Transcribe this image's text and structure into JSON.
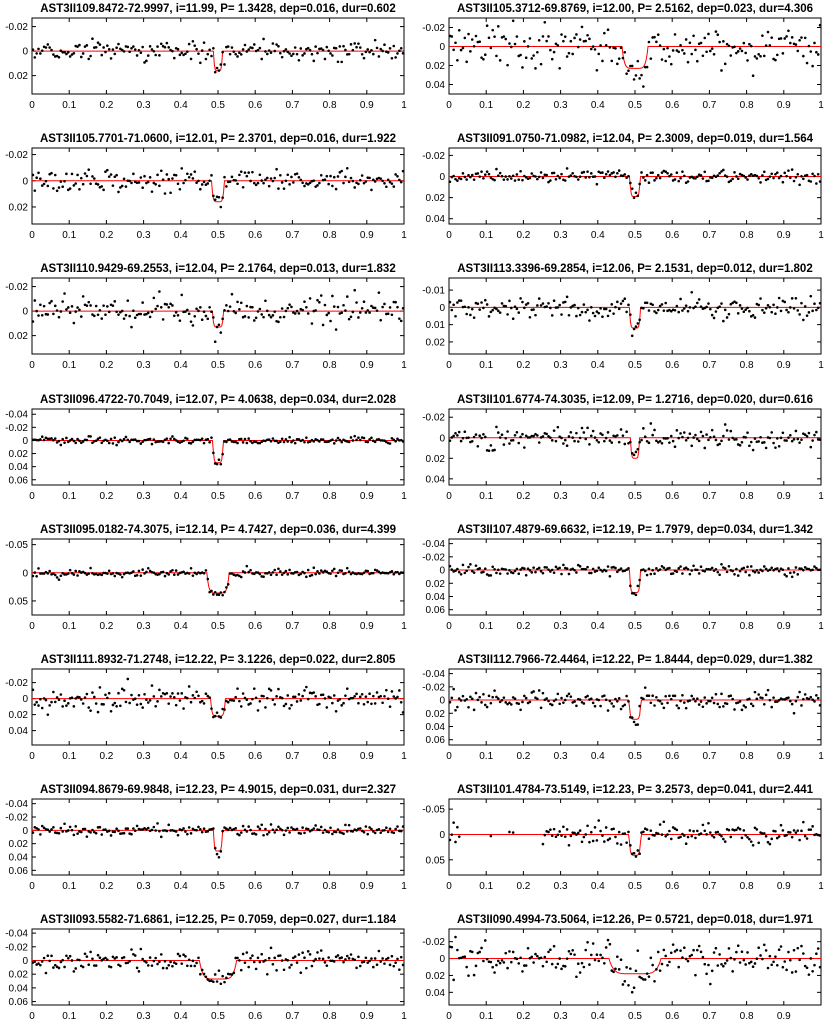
{
  "chart_data": [
    {
      "type": "scatter",
      "title": "AST3II109.8472-72.9997, i=11.99, P= 1.3428, dep=0.016, dur=0.602",
      "xlim": [
        0,
        1
      ],
      "ylim": [
        0.035,
        -0.027
      ],
      "yticks": [
        -0.02,
        0,
        0.02
      ],
      "ytick_labels": [
        "-0.02",
        "0",
        "0.02"
      ],
      "xticks": [
        0,
        0.1,
        0.2,
        0.3,
        0.4,
        0.5,
        0.6,
        0.7,
        0.8,
        0.9,
        1
      ],
      "xtick_labels": [
        "0",
        "0.1",
        "0.2",
        "0.3",
        "0.4",
        "0.5",
        "0.6",
        "0.7",
        "0.8",
        "0.9",
        "1"
      ],
      "depth": 0.016,
      "transit_center": 0.5,
      "transit_halfwidth": 0.012,
      "noise": 0.004,
      "seed": 11
    },
    {
      "type": "scatter",
      "title": "AST3II105.3712-69.8769, i=12.00, P= 2.5162, dep=0.023, dur=4.306",
      "xlim": [
        0,
        1
      ],
      "ylim": [
        0.05,
        -0.03
      ],
      "yticks": [
        -0.02,
        0,
        0.02,
        0.04
      ],
      "ytick_labels": [
        "-0.02",
        "0",
        "0.02",
        "0.04"
      ],
      "xticks": [
        0,
        0.1,
        0.2,
        0.3,
        0.4,
        0.5,
        0.6,
        0.7,
        0.8,
        0.9,
        1
      ],
      "xtick_labels": [
        "0",
        "0.1",
        "0.2",
        "0.3",
        "0.4",
        "0.5",
        "0.6",
        "0.7",
        "0.8",
        "0.9",
        "1"
      ],
      "depth": 0.023,
      "transit_center": 0.5,
      "transit_halfwidth": 0.035,
      "noise": 0.01,
      "seed": 23
    },
    {
      "type": "scatter",
      "title": "AST3II105.7701-71.0600, i=12.01, P= 2.3701, dep=0.016, dur=1.922",
      "xlim": [
        0,
        1
      ],
      "ylim": [
        0.033,
        -0.025
      ],
      "yticks": [
        -0.02,
        0,
        0.02
      ],
      "ytick_labels": [
        "-0.02",
        "0",
        "0.02"
      ],
      "xticks": [
        0,
        0.1,
        0.2,
        0.3,
        0.4,
        0.5,
        0.6,
        0.7,
        0.8,
        0.9,
        1
      ],
      "xtick_labels": [
        "0",
        "0.1",
        "0.2",
        "0.3",
        "0.4",
        "0.5",
        "0.6",
        "0.7",
        "0.8",
        "0.9",
        "1"
      ],
      "depth": 0.016,
      "transit_center": 0.5,
      "transit_halfwidth": 0.017,
      "noise": 0.004,
      "seed": 37
    },
    {
      "type": "scatter",
      "title": "AST3II091.0750-71.0982, i=12.04, P= 2.3009, dep=0.019, dur=1.564",
      "xlim": [
        0,
        1
      ],
      "ylim": [
        0.045,
        -0.027
      ],
      "yticks": [
        -0.02,
        0,
        0.02,
        0.04
      ],
      "ytick_labels": [
        "-0.02",
        "0",
        "0.02",
        "0.04"
      ],
      "xticks": [
        0,
        0.1,
        0.2,
        0.3,
        0.4,
        0.5,
        0.6,
        0.7,
        0.8,
        0.9,
        1
      ],
      "xtick_labels": [
        "0",
        "0.1",
        "0.2",
        "0.3",
        "0.4",
        "0.5",
        "0.6",
        "0.7",
        "0.8",
        "0.9",
        "1"
      ],
      "depth": 0.019,
      "transit_center": 0.5,
      "transit_halfwidth": 0.014,
      "noise": 0.003,
      "seed": 41
    },
    {
      "type": "scatter",
      "title": "AST3II110.9429-69.2553, i=12.04, P= 2.1764, dep=0.013, dur=1.832",
      "xlim": [
        0,
        1
      ],
      "ylim": [
        0.035,
        -0.027
      ],
      "yticks": [
        -0.02,
        0,
        0.02
      ],
      "ytick_labels": [
        "-0.02",
        "0",
        "0.02"
      ],
      "xticks": [
        0,
        0.1,
        0.2,
        0.3,
        0.4,
        0.5,
        0.6,
        0.7,
        0.8,
        0.9,
        1
      ],
      "xtick_labels": [
        "0",
        "0.1",
        "0.2",
        "0.3",
        "0.4",
        "0.5",
        "0.6",
        "0.7",
        "0.8",
        "0.9",
        "1"
      ],
      "depth": 0.013,
      "transit_center": 0.5,
      "transit_halfwidth": 0.015,
      "noise": 0.006,
      "seed": 53
    },
    {
      "type": "scatter",
      "title": "AST3II113.3396-69.2854, i=12.06, P= 2.1531, dep=0.012, dur=1.802",
      "xlim": [
        0,
        1
      ],
      "ylim": [
        0.027,
        -0.017
      ],
      "yticks": [
        -0.01,
        0,
        0.01,
        0.02
      ],
      "ytick_labels": [
        "-0.01",
        "0",
        "0.01",
        "0.02"
      ],
      "xticks": [
        0,
        0.1,
        0.2,
        0.3,
        0.4,
        0.5,
        0.6,
        0.7,
        0.8,
        0.9,
        1
      ],
      "xtick_labels": [
        "0",
        "0.1",
        "0.2",
        "0.3",
        "0.4",
        "0.5",
        "0.6",
        "0.7",
        "0.8",
        "0.9",
        "1"
      ],
      "depth": 0.012,
      "transit_center": 0.5,
      "transit_halfwidth": 0.015,
      "noise": 0.003,
      "seed": 67
    },
    {
      "type": "scatter",
      "title": "AST3II096.4722-70.7049, i=12.07, P= 4.0638, dep=0.034, dur=2.028",
      "xlim": [
        0,
        1
      ],
      "ylim": [
        0.068,
        -0.048
      ],
      "yticks": [
        -0.04,
        -0.02,
        0,
        0.02,
        0.04,
        0.06
      ],
      "ytick_labels": [
        "-0.04",
        "-0.02",
        "0",
        "0.02",
        "0.04",
        "0.06"
      ],
      "xticks": [
        0,
        0.1,
        0.2,
        0.3,
        0.4,
        0.5,
        0.6,
        0.7,
        0.8,
        0.9,
        1
      ],
      "xtick_labels": [
        "0",
        "0.1",
        "0.2",
        "0.3",
        "0.4",
        "0.5",
        "0.6",
        "0.7",
        "0.8",
        "0.9",
        "1"
      ],
      "depth": 0.034,
      "transit_center": 0.5,
      "transit_halfwidth": 0.014,
      "noise": 0.003,
      "seed": 71
    },
    {
      "type": "scatter",
      "title": "AST3II101.6774-74.3035, i=12.09, P= 1.2716, dep=0.020, dur=0.616",
      "xlim": [
        0,
        1
      ],
      "ylim": [
        0.046,
        -0.028
      ],
      "yticks": [
        -0.02,
        0,
        0.02,
        0.04
      ],
      "ytick_labels": [
        "-0.02",
        "0",
        "0.02",
        "0.04"
      ],
      "xticks": [
        0,
        0.1,
        0.2,
        0.3,
        0.4,
        0.5,
        0.6,
        0.7,
        0.8,
        0.9,
        1
      ],
      "xtick_labels": [
        "0",
        "0.1",
        "0.2",
        "0.3",
        "0.4",
        "0.5",
        "0.6",
        "0.7",
        "0.8",
        "0.9",
        "1"
      ],
      "depth": 0.02,
      "transit_center": 0.5,
      "transit_halfwidth": 0.012,
      "noise": 0.005,
      "seed": 83
    },
    {
      "type": "scatter",
      "title": "AST3II095.0182-74.3075, i=12.14, P= 4.7427, dep=0.036, dur=4.399",
      "xlim": [
        0,
        1
      ],
      "ylim": [
        0.075,
        -0.06
      ],
      "yticks": [
        -0.05,
        0,
        0.05
      ],
      "ytick_labels": [
        "-0.05",
        "0",
        "0.05"
      ],
      "xticks": [
        0,
        0.1,
        0.2,
        0.3,
        0.4,
        0.5,
        0.6,
        0.7,
        0.8,
        0.9,
        1
      ],
      "xtick_labels": [
        "0",
        "0.1",
        "0.2",
        "0.3",
        "0.4",
        "0.5",
        "0.6",
        "0.7",
        "0.8",
        "0.9",
        "1"
      ],
      "depth": 0.036,
      "transit_center": 0.5,
      "transit_halfwidth": 0.03,
      "noise": 0.004,
      "seed": 97
    },
    {
      "type": "scatter",
      "title": "AST3II107.4879-69.6632, i=12.19, P= 1.7979, dep=0.034, dur=1.342",
      "xlim": [
        0,
        1
      ],
      "ylim": [
        0.068,
        -0.047
      ],
      "yticks": [
        -0.04,
        -0.02,
        0,
        0.02,
        0.04,
        0.06
      ],
      "ytick_labels": [
        "-0.04",
        "-0.02",
        "0",
        "0.02",
        "0.04",
        "0.06"
      ],
      "xticks": [
        0,
        0.1,
        0.2,
        0.3,
        0.4,
        0.5,
        0.6,
        0.7,
        0.8,
        0.9,
        1
      ],
      "xtick_labels": [
        "0",
        "0.1",
        "0.2",
        "0.3",
        "0.4",
        "0.5",
        "0.6",
        "0.7",
        "0.8",
        "0.9",
        "1"
      ],
      "depth": 0.034,
      "transit_center": 0.5,
      "transit_halfwidth": 0.015,
      "noise": 0.004,
      "seed": 101
    },
    {
      "type": "scatter",
      "title": "AST3II111.8932-71.2748, i=12.22, P= 3.1226, dep=0.022, dur=2.805",
      "xlim": [
        0,
        1
      ],
      "ylim": [
        0.058,
        -0.037
      ],
      "yticks": [
        -0.02,
        0,
        0.02,
        0.04
      ],
      "ytick_labels": [
        "-0.02",
        "0",
        "0.02",
        "0.04"
      ],
      "xticks": [
        0,
        0.1,
        0.2,
        0.3,
        0.4,
        0.5,
        0.6,
        0.7,
        0.8,
        0.9,
        1
      ],
      "xtick_labels": [
        "0",
        "0.1",
        "0.2",
        "0.3",
        "0.4",
        "0.5",
        "0.6",
        "0.7",
        "0.8",
        "0.9",
        "1"
      ],
      "depth": 0.022,
      "transit_center": 0.5,
      "transit_halfwidth": 0.02,
      "noise": 0.007,
      "seed": 113
    },
    {
      "type": "scatter",
      "title": "AST3II112.7966-72.4464, i=12.22, P= 1.8444, dep=0.029, dur=1.382",
      "xlim": [
        0,
        1
      ],
      "ylim": [
        0.068,
        -0.047
      ],
      "yticks": [
        -0.04,
        -0.02,
        0,
        0.02,
        0.04,
        0.06
      ],
      "ytick_labels": [
        "-0.04",
        "-0.02",
        "0",
        "0.02",
        "0.04",
        "0.06"
      ],
      "xticks": [
        0,
        0.1,
        0.2,
        0.3,
        0.4,
        0.5,
        0.6,
        0.7,
        0.8,
        0.9,
        1
      ],
      "xtick_labels": [
        "0",
        "0.1",
        "0.2",
        "0.3",
        "0.4",
        "0.5",
        "0.6",
        "0.7",
        "0.8",
        "0.9",
        "1"
      ],
      "depth": 0.029,
      "transit_center": 0.5,
      "transit_halfwidth": 0.016,
      "noise": 0.007,
      "seed": 127
    },
    {
      "type": "scatter",
      "title": "AST3II094.8679-69.9848, i=12.23, P= 4.9015, dep=0.031, dur=2.327",
      "xlim": [
        0,
        1
      ],
      "ylim": [
        0.067,
        -0.047
      ],
      "yticks": [
        -0.04,
        -0.02,
        0,
        0.02,
        0.04,
        0.06
      ],
      "ytick_labels": [
        "-0.04",
        "-0.02",
        "0",
        "0.02",
        "0.04",
        "0.06"
      ],
      "xticks": [
        0,
        0.1,
        0.2,
        0.3,
        0.4,
        0.5,
        0.6,
        0.7,
        0.8,
        0.9,
        1
      ],
      "xtick_labels": [
        "0",
        "0.1",
        "0.2",
        "0.3",
        "0.4",
        "0.5",
        "0.6",
        "0.7",
        "0.8",
        "0.9",
        "1"
      ],
      "depth": 0.031,
      "transit_center": 0.5,
      "transit_halfwidth": 0.012,
      "noise": 0.004,
      "seed": 131
    },
    {
      "type": "scatter",
      "title": "AST3II101.4784-73.5149, i=12.23, P= 3.2573, dep=0.041, dur=2.441",
      "xlim": [
        0,
        1
      ],
      "ylim": [
        0.08,
        -0.07
      ],
      "yticks": [
        -0.05,
        0,
        0.05
      ],
      "ytick_labels": [
        "-0.05",
        "0",
        "0.05"
      ],
      "xticks": [
        0,
        0.1,
        0.2,
        0.3,
        0.4,
        0.5,
        0.6,
        0.7,
        0.8,
        0.9,
        1
      ],
      "xtick_labels": [
        "0",
        "0.1",
        "0.2",
        "0.3",
        "0.4",
        "0.5",
        "0.6",
        "0.7",
        "0.8",
        "0.9",
        "1"
      ],
      "depth": 0.041,
      "transit_center": 0.5,
      "transit_halfwidth": 0.016,
      "noise": 0.009,
      "seed": 139,
      "gap": [
        0.03,
        0.25
      ]
    },
    {
      "type": "scatter",
      "title": "AST3II093.5582-71.6861, i=12.25, P= 0.7059, dep=0.027, dur=1.184",
      "xlim": [
        0,
        1
      ],
      "ylim": [
        0.065,
        -0.046
      ],
      "yticks": [
        -0.04,
        -0.02,
        0,
        0.02,
        0.04,
        0.06
      ],
      "ytick_labels": [
        "-0.04",
        "-0.02",
        "0",
        "0.02",
        "0.04",
        "0.06"
      ],
      "xticks": [
        0,
        0.1,
        0.2,
        0.3,
        0.4,
        0.5,
        0.6,
        0.7,
        0.8,
        0.9,
        1
      ],
      "xtick_labels": [
        "0",
        "0.1",
        "0.2",
        "0.3",
        "0.4",
        "0.5",
        "0.6",
        "0.7",
        "0.8",
        "0.9",
        "1"
      ],
      "depth": 0.027,
      "transit_center": 0.5,
      "transit_halfwidth": 0.05,
      "noise": 0.007,
      "seed": 149
    },
    {
      "type": "scatter",
      "title": "AST3II090.4994-73.5064, i=12.26, P= 0.5721, dep=0.018, dur=1.971",
      "xlim": [
        0,
        1
      ],
      "ylim": [
        0.055,
        -0.035
      ],
      "yticks": [
        -0.02,
        0,
        0.02,
        0.04
      ],
      "ytick_labels": [
        "-0.02",
        "0",
        "0.02",
        "0.04"
      ],
      "xticks": [
        0,
        0.1,
        0.2,
        0.3,
        0.4,
        0.5,
        0.6,
        0.7,
        0.8,
        0.9
      ],
      "xtick_labels": [
        "0",
        "0.1",
        "0.2",
        "0.3",
        "0.4",
        "0.5",
        "0.6",
        "0.7",
        "0.8",
        "0.9"
      ],
      "depth": 0.018,
      "transit_center": 0.5,
      "transit_halfwidth": 0.07,
      "noise": 0.009,
      "seed": 157
    }
  ],
  "colors": {
    "model": "#ff0000",
    "points": "#000000",
    "axes": "#000000",
    "background": "#ffffff"
  }
}
